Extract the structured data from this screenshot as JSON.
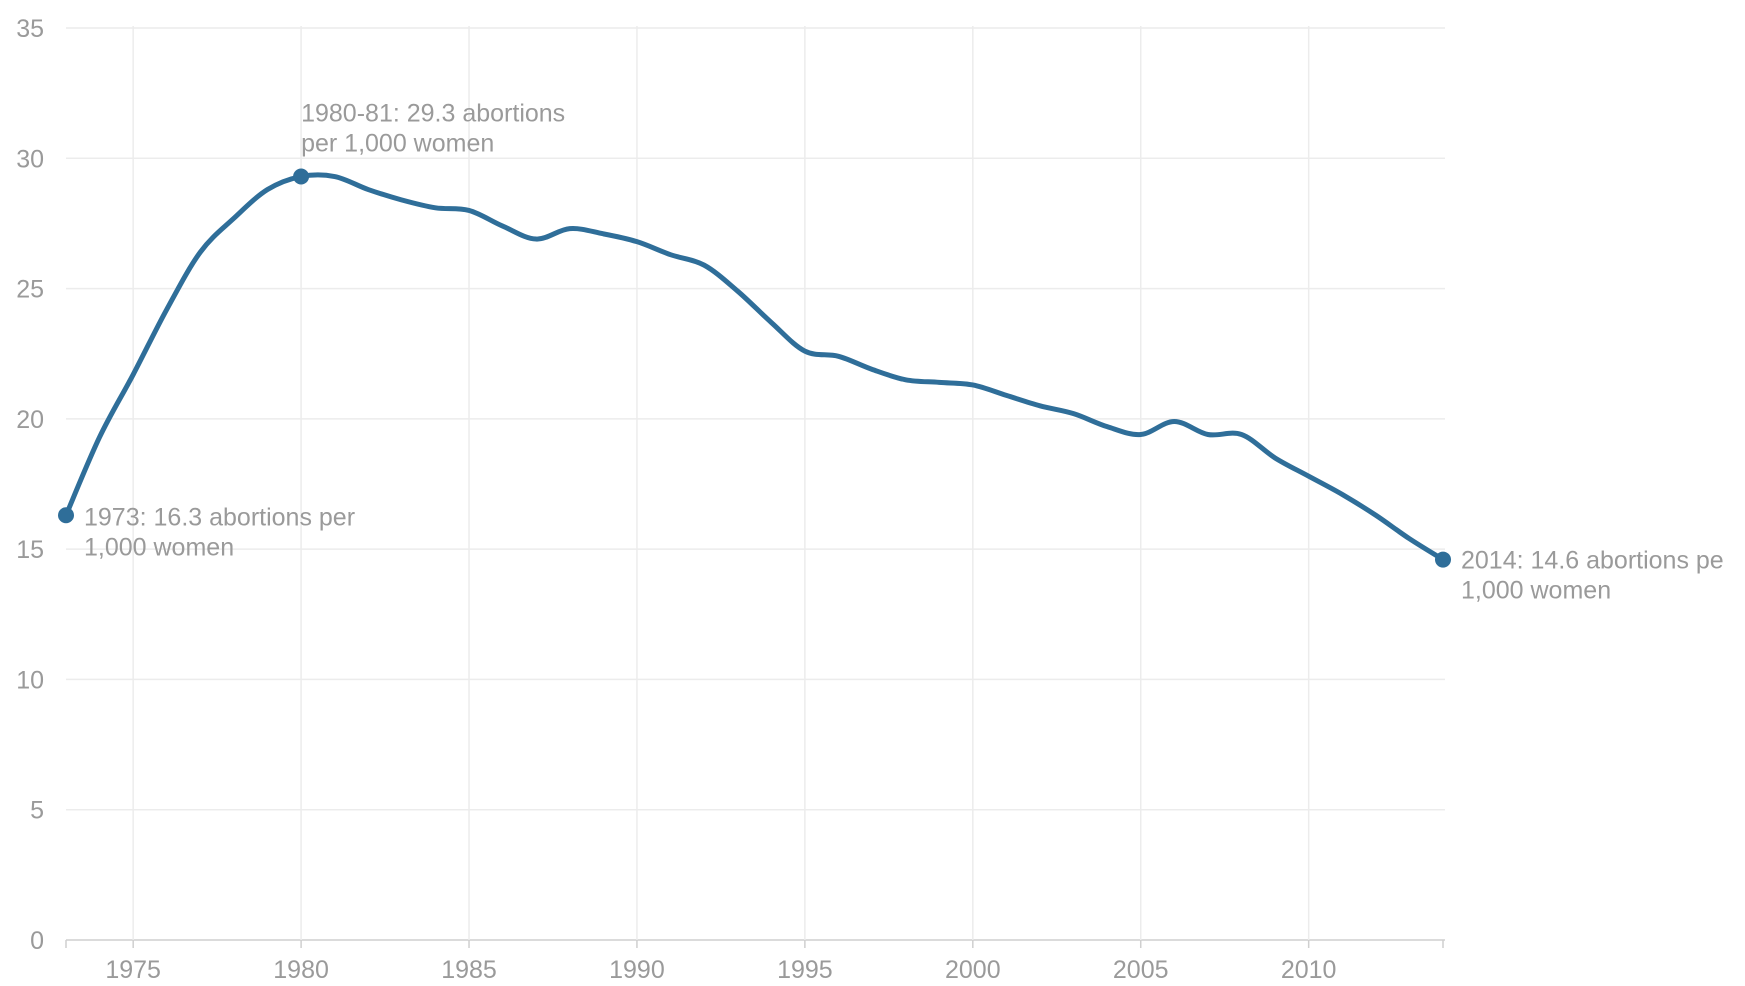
{
  "chart_data": {
    "type": "line",
    "title": "",
    "xlabel": "",
    "ylabel": "",
    "xlim": [
      1973,
      2014
    ],
    "ylim": [
      0,
      35
    ],
    "yticks": [
      0,
      5,
      10,
      15,
      20,
      25,
      30,
      35
    ],
    "xticks": [
      1975,
      1980,
      1985,
      1990,
      1995,
      2000,
      2005,
      2010
    ],
    "grid": true,
    "colors": {
      "line": "#2f6e99",
      "grid": "#ececec",
      "text": "#9a9a9a"
    },
    "series": [
      {
        "x": [
          1973,
          1974,
          1975,
          1976,
          1977,
          1978,
          1979,
          1980,
          1981,
          1982,
          1983,
          1984,
          1985,
          1986,
          1987,
          1988,
          1989,
          1990,
          1991,
          1992,
          1993,
          1994,
          1995,
          1996,
          1997,
          1998,
          1999,
          2000,
          2001,
          2002,
          2003,
          2004,
          2005,
          2006,
          2007,
          2008,
          2009,
          2010,
          2011,
          2012,
          2013,
          2014
        ],
        "values": [
          16.3,
          19.3,
          21.7,
          24.2,
          26.4,
          27.7,
          28.8,
          29.3,
          29.3,
          28.8,
          28.4,
          28.1,
          28.0,
          27.4,
          26.9,
          27.3,
          27.1,
          26.8,
          26.3,
          25.9,
          24.9,
          23.7,
          22.6,
          22.4,
          21.9,
          21.5,
          21.4,
          21.3,
          20.9,
          20.5,
          20.2,
          19.7,
          19.4,
          19.9,
          19.4,
          19.4,
          18.5,
          17.8,
          17.1,
          16.3,
          15.4,
          14.6
        ]
      }
    ],
    "annotations": [
      {
        "x": 1973,
        "y": 16.3,
        "lines": [
          "1973: 16.3 abortions per",
          "1,000 women"
        ]
      },
      {
        "x": 1980,
        "y": 29.3,
        "lines": [
          "1980-81: 29.3 abortions",
          "per 1,000 women"
        ]
      },
      {
        "x": 2014,
        "y": 14.6,
        "lines": [
          "2014: 14.6 abortions pe",
          "1,000 women"
        ]
      }
    ]
  }
}
